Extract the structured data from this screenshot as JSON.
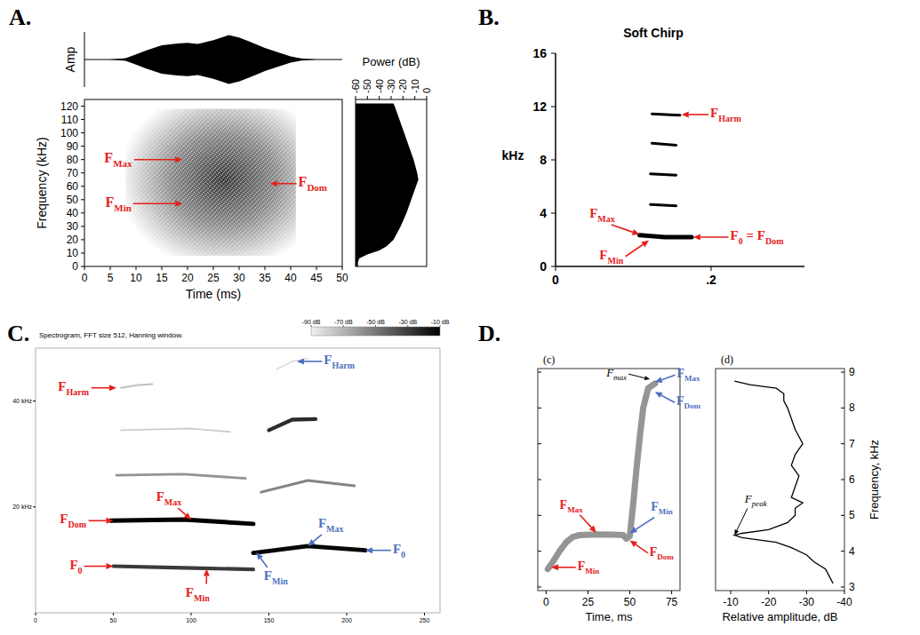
{
  "chart_data": [
    {
      "type": "spectrogram",
      "panel": "A.",
      "x_label": "Time (ms)",
      "y_label": "Frequency (kHz)",
      "xlim": [
        0,
        50
      ],
      "xticks": [
        0,
        5,
        10,
        15,
        20,
        25,
        30,
        35,
        40,
        45,
        50
      ],
      "ylim": [
        0,
        125
      ],
      "yticks": [
        0,
        10,
        20,
        30,
        40,
        50,
        60,
        70,
        80,
        90,
        100,
        110,
        120
      ],
      "oscillogram": {
        "label": "Amp",
        "t": [
          5,
          8,
          10,
          12,
          15,
          18,
          20,
          22,
          25,
          28,
          30,
          32,
          35,
          38,
          40,
          42,
          45
        ],
        "amplitude": [
          0,
          0.05,
          0.2,
          0.35,
          0.55,
          0.62,
          0.65,
          0.6,
          0.75,
          0.95,
          0.85,
          0.7,
          0.45,
          0.25,
          0.12,
          0.04,
          0
        ]
      },
      "energy": {
        "t_start": 8,
        "t_end": 41,
        "t_peak": 27,
        "f_min": 8,
        "f_max": 118,
        "f_peak": 65
      },
      "power": {
        "label": "Power (dB)",
        "xlim": [
          -60,
          0
        ],
        "xticks": [
          -60,
          -50,
          -40,
          -30,
          -20,
          -10,
          0
        ],
        "f": [
          0,
          3,
          6,
          9,
          12,
          15,
          20,
          25,
          30,
          40,
          50,
          60,
          65,
          70,
          80,
          90,
          100,
          110,
          120,
          122
        ],
        "db": [
          -58,
          -58,
          -57,
          -50,
          -40,
          -34,
          -28,
          -25,
          -22,
          -17,
          -13,
          -9,
          -7,
          -8,
          -11,
          -15,
          -19,
          -23,
          -27,
          -28
        ]
      },
      "annotations": [
        {
          "label": [
            {
              "text": "F"
            },
            {
              "sub": "Max"
            }
          ],
          "color": "#e3211c",
          "x": 19,
          "y": 80
        },
        {
          "label": [
            {
              "text": "F"
            },
            {
              "sub": "Min"
            }
          ],
          "color": "#e3211c",
          "x": 19,
          "y": 47
        },
        {
          "label": [
            {
              "text": "F"
            },
            {
              "sub": "Dom"
            }
          ],
          "color": "#e3211c",
          "x": 36,
          "y": 62
        }
      ]
    },
    {
      "type": "spectrogram",
      "panel": "B.",
      "title": "Soft Chirp",
      "y_label": "kHz",
      "xlim": [
        0,
        0.32
      ],
      "xticks": [
        0,
        {
          "value": 0.2,
          "label": ".2"
        }
      ],
      "ylim": [
        0,
        16
      ],
      "yticks": [
        0,
        4,
        8,
        12,
        16
      ],
      "tracks": [
        {
          "t": [
            0.108,
            0.14,
            0.175
          ],
          "f": [
            2.35,
            2.2,
            2.2
          ]
        },
        {
          "t": [
            0.122,
            0.155
          ],
          "f": [
            4.65,
            4.55
          ]
        },
        {
          "t": [
            0.122,
            0.155
          ],
          "f": [
            6.95,
            6.85
          ]
        },
        {
          "t": [
            0.124,
            0.155
          ],
          "f": [
            9.25,
            9.1
          ]
        },
        {
          "t": [
            0.124,
            0.16
          ],
          "f": [
            11.45,
            11.35
          ]
        }
      ],
      "annotations": [
        {
          "label": [
            {
              "text": "F"
            },
            {
              "sub": "Harm"
            }
          ],
          "color": "#e3211c",
          "x": 0.162,
          "y": 11.4
        },
        {
          "label": [
            {
              "text": "F"
            },
            {
              "sub": "Max"
            }
          ],
          "color": "#e3211c",
          "x": 0.108,
          "y": 2.4
        },
        {
          "label": [
            {
              "text": "F"
            },
            {
              "sub": "0"
            },
            {
              "text": " = F"
            },
            {
              "sub": "Dom"
            }
          ],
          "color": "#e3211c",
          "x": 0.177,
          "y": 2.2
        },
        {
          "label": [
            {
              "text": "F"
            },
            {
              "sub": "Min"
            }
          ],
          "color": "#e3211c",
          "x": 0.12,
          "y": 1.95
        }
      ]
    },
    {
      "type": "spectrogram",
      "panel": "C.",
      "title": "Spectrogram, FFT size 512, Hanning window.",
      "xlim": [
        0,
        260
      ],
      "xticks": [
        0,
        50,
        100,
        150,
        200,
        250
      ],
      "ylim": [
        0,
        50
      ],
      "yticks": [
        {
          "value": 20,
          "label": "20 kHz"
        },
        {
          "value": 40,
          "label": "40 kHz"
        }
      ],
      "colorbar": {
        "range": [
          -90,
          -10
        ],
        "ticks": [
          {
            "value": -90,
            "label": "-90 dB"
          },
          {
            "value": -70,
            "label": "-70 dB"
          },
          {
            "value": -50,
            "label": "-50 dB"
          },
          {
            "value": -30,
            "label": "-30 dB"
          },
          {
            "value": -10,
            "label": "-10 dB"
          }
        ]
      },
      "tracks": [
        {
          "t": [
            50,
            95,
            140
          ],
          "f": [
            8.8,
            8.5,
            8.2
          ],
          "level": -30
        },
        {
          "t": [
            48,
            95,
            140
          ],
          "f": [
            17.4,
            17.6,
            16.8
          ],
          "level": -10
        },
        {
          "t": [
            52,
            95,
            135
          ],
          "f": [
            26,
            26.2,
            25.4
          ],
          "level": -60
        },
        {
          "t": [
            55,
            100,
            125
          ],
          "f": [
            34.5,
            34.8,
            34.2
          ],
          "level": -80
        },
        {
          "t": [
            55,
            65,
            75
          ],
          "f": [
            42.5,
            43,
            43.2
          ],
          "level": -75
        },
        {
          "t": [
            140,
            175,
            212
          ],
          "f": [
            11.3,
            12.6,
            11.8
          ],
          "level": -12
        },
        {
          "t": [
            145,
            175,
            205
          ],
          "f": [
            22.8,
            25,
            24
          ],
          "level": -55
        },
        {
          "t": [
            150,
            165,
            180
          ],
          "f": [
            34.5,
            36.5,
            36.6
          ],
          "level": -25
        },
        {
          "t": [
            155,
            165,
            175
          ],
          "f": [
            46,
            47.5,
            48
          ],
          "level": -85
        }
      ],
      "annotations": [
        {
          "label": [
            {
              "text": "F"
            },
            {
              "sub": "Harm"
            }
          ],
          "color": "#e3211c",
          "x": 52,
          "y": 42.5
        },
        {
          "label": [
            {
              "text": "F"
            },
            {
              "sub": "Harm"
            }
          ],
          "color": "#4f71be",
          "x": 168,
          "y": 47.5
        },
        {
          "label": [
            {
              "text": "F"
            },
            {
              "sub": "Max"
            }
          ],
          "color": "#e3211c",
          "x": 100,
          "y": 17.6
        },
        {
          "label": [
            {
              "text": "F"
            },
            {
              "sub": "Dom"
            }
          ],
          "color": "#e3211c",
          "x": 50,
          "y": 17.4
        },
        {
          "label": [
            {
              "text": "F"
            },
            {
              "sub": "0"
            }
          ],
          "color": "#e3211c",
          "x": 50,
          "y": 8.8
        },
        {
          "label": [
            {
              "text": "F"
            },
            {
              "sub": "Min"
            }
          ],
          "color": "#e3211c",
          "x": 110,
          "y": 8.3
        },
        {
          "label": [
            {
              "text": "F"
            },
            {
              "sub": "Max"
            }
          ],
          "color": "#4f71be",
          "x": 175,
          "y": 12.6
        },
        {
          "label": [
            {
              "text": "F"
            },
            {
              "sub": "Min"
            }
          ],
          "color": "#4f71be",
          "x": 142,
          "y": 11.4
        },
        {
          "label": [
            {
              "text": "F"
            },
            {
              "sub": "0"
            }
          ],
          "color": "#4f71be",
          "x": 212,
          "y": 11.8
        }
      ]
    },
    {
      "type": "spectrogram",
      "panel": "D.",
      "subtitle": "(c)",
      "x_label": "Time, ms",
      "xlim": [
        -5,
        80
      ],
      "xticks": [
        0,
        25,
        50,
        75
      ],
      "ylim": [
        2.9,
        9.1
      ],
      "yticks": [
        3,
        4,
        5,
        6,
        7,
        8,
        9
      ],
      "trace": {
        "t": [
          1,
          4,
          8,
          12,
          16,
          20,
          30,
          40,
          46,
          48,
          50,
          52,
          54,
          56,
          58,
          61,
          65
        ],
        "f": [
          3.5,
          3.7,
          4.0,
          4.25,
          4.4,
          4.45,
          4.47,
          4.46,
          4.45,
          4.35,
          4.42,
          5.3,
          6.3,
          7.2,
          8.0,
          8.55,
          8.68
        ]
      },
      "annotations": [
        {
          "label": [
            {
              "text": "F"
            },
            {
              "sub": "max"
            }
          ],
          "color": "#000000",
          "x": 62,
          "y": 8.8
        },
        {
          "label": [
            {
              "text": "F"
            },
            {
              "sub": "Max"
            }
          ],
          "color": "#4f71be",
          "x": 65,
          "y": 8.72
        },
        {
          "label": [
            {
              "text": "F"
            },
            {
              "sub": "Dom"
            }
          ],
          "color": "#4f71be",
          "x": 65,
          "y": 8.45
        },
        {
          "label": [
            {
              "text": "F"
            },
            {
              "sub": "Max"
            }
          ],
          "color": "#e3211c",
          "x": 30,
          "y": 4.52
        },
        {
          "label": [
            {
              "text": "F"
            },
            {
              "sub": "Min"
            }
          ],
          "color": "#e3211c",
          "x": 3,
          "y": 3.55
        },
        {
          "label": [
            {
              "text": "F"
            },
            {
              "sub": "Min"
            }
          ],
          "color": "#4f71be",
          "x": 50,
          "y": 4.5
        },
        {
          "label": [
            {
              "text": "F"
            },
            {
              "sub": "Dom"
            }
          ],
          "color": "#e3211c",
          "x": 50,
          "y": 4.3
        }
      ],
      "amplitude": {
        "subtitle": "(d)",
        "x_label": "Relative amplitude, dB",
        "y_label": "Frequency, kHz",
        "xlim": [
          -6,
          -40
        ],
        "xticks": [
          -10,
          -20,
          -30,
          -40
        ],
        "f": [
          8.75,
          8.65,
          8.55,
          8.4,
          8.2,
          8.0,
          7.7,
          7.4,
          7.0,
          6.7,
          6.4,
          6.1,
          5.8,
          5.5,
          5.35,
          5.2,
          5.0,
          4.8,
          4.6,
          4.5,
          4.45,
          4.38,
          4.25,
          4.1,
          3.9,
          3.7,
          3.5,
          3.3,
          3.1
        ],
        "db": [
          -11,
          -15,
          -22,
          -24,
          -24,
          -25,
          -26,
          -27,
          -29,
          -27,
          -26,
          -28,
          -27,
          -26,
          -29,
          -27,
          -27,
          -25,
          -20,
          -13,
          -11,
          -13,
          -22,
          -26,
          -30,
          -32,
          -35,
          -36,
          -37
        ],
        "annotations": [
          {
            "label": [
              {
                "text": "F"
              },
              {
                "sub": "peak"
              }
            ],
            "color": "#000000",
            "x": -11,
            "y": 4.45
          }
        ]
      }
    }
  ]
}
